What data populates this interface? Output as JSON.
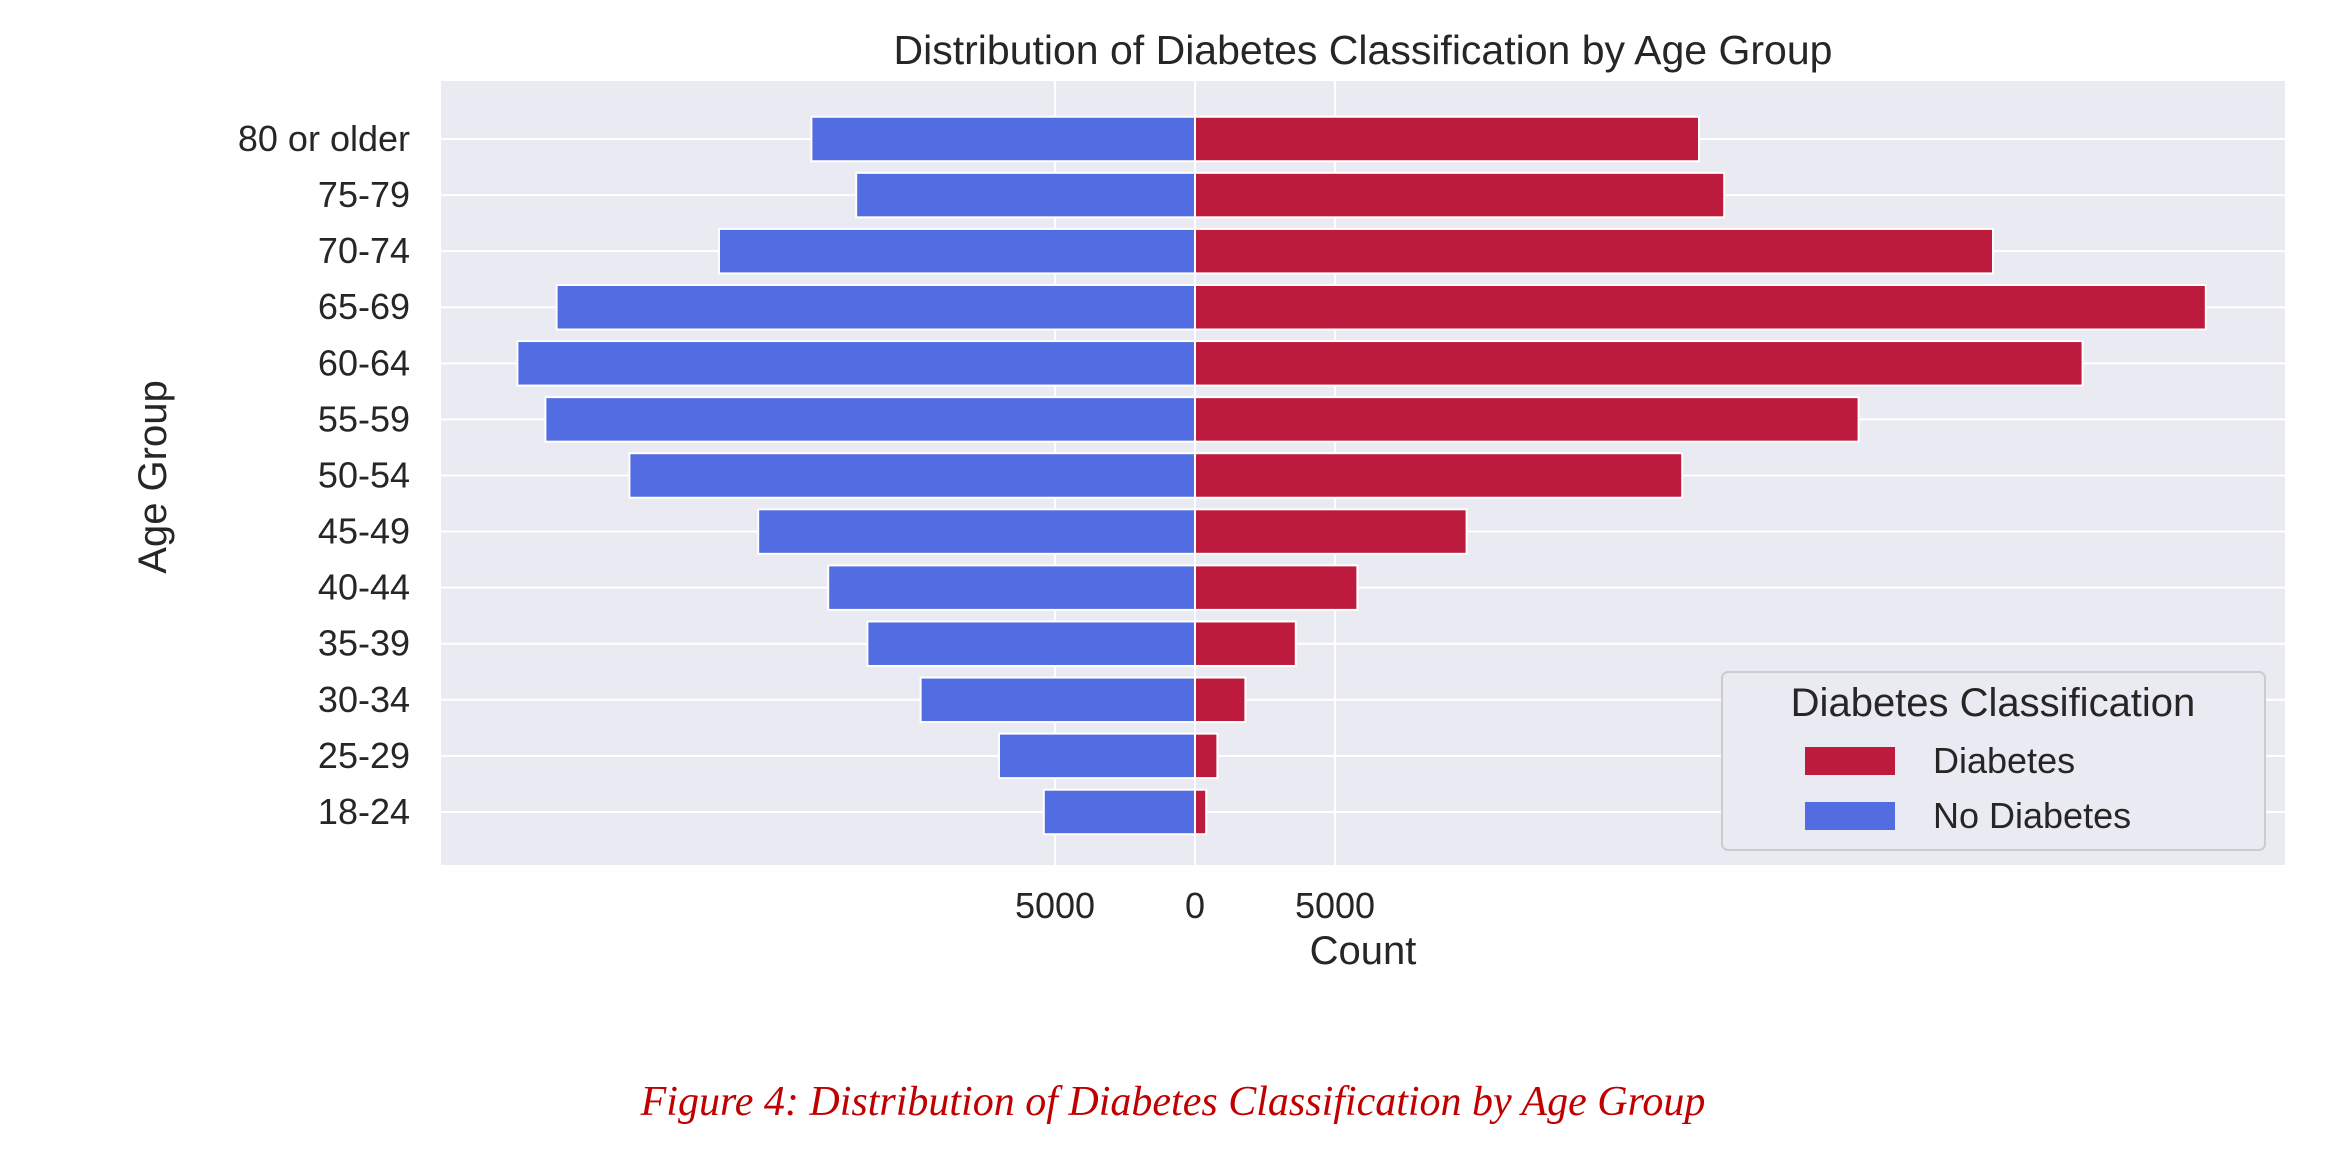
{
  "chart_data": {
    "type": "bar",
    "orientation": "horizontal-diverging",
    "title": "Distribution of Diabetes Classification by Age Group",
    "xlabel": "Count",
    "ylabel": "Age Group",
    "categories": [
      "80 or older",
      "75-79",
      "70-74",
      "65-69",
      "60-64",
      "55-59",
      "50-54",
      "45-49",
      "40-44",
      "35-39",
      "30-34",
      "25-29",
      "18-24"
    ],
    "series": [
      {
        "name": "Diabetes",
        "color": "#bc1b3d",
        "direction": "right",
        "values": [
          18000,
          18900,
          28500,
          36100,
          31700,
          23700,
          17400,
          9700,
          5800,
          3600,
          1800,
          800,
          400
        ]
      },
      {
        "name": "No Diabetes",
        "color": "#526ce1",
        "direction": "left",
        "values": [
          13700,
          12100,
          17000,
          22800,
          24200,
          23200,
          20200,
          15600,
          13100,
          11700,
          9800,
          7000,
          5400
        ]
      }
    ],
    "xlim": [
      -27500,
      39000
    ],
    "x_ticks": [
      -5000,
      0,
      5000
    ],
    "x_tick_labels": [
      "5000",
      "0",
      "5000"
    ],
    "grid": true,
    "legend": {
      "title": "Diabetes Classification",
      "placement": "lower-right",
      "entries": [
        "Diabetes",
        "No Diabetes"
      ]
    },
    "style": {
      "plot_background": "#eaeaf2",
      "grid_color": "#ffffff"
    }
  },
  "caption": "Figure 4: Distribution of Diabetes Classification by Age Group"
}
